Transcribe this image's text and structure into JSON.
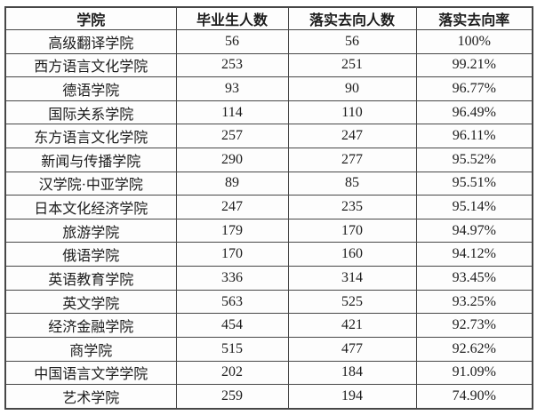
{
  "chart_data": {
    "type": "table",
    "columns": [
      "学院",
      "毕业生人数",
      "落实去向人数",
      "落实去向率"
    ],
    "rows": [
      {
        "college": "高级翻译学院",
        "graduates": 56,
        "placed": 56,
        "rate": "100%"
      },
      {
        "college": "西方语言文化学院",
        "graduates": 253,
        "placed": 251,
        "rate": "99.21%"
      },
      {
        "college": "德语学院",
        "graduates": 93,
        "placed": 90,
        "rate": "96.77%"
      },
      {
        "college": "国际关系学院",
        "graduates": 114,
        "placed": 110,
        "rate": "96.49%"
      },
      {
        "college": "东方语言文化学院",
        "graduates": 257,
        "placed": 247,
        "rate": "96.11%"
      },
      {
        "college": "新闻与传播学院",
        "graduates": 290,
        "placed": 277,
        "rate": "95.52%"
      },
      {
        "college": "汉学院·中亚学院",
        "graduates": 89,
        "placed": 85,
        "rate": "95.51%"
      },
      {
        "college": "日本文化经济学院",
        "graduates": 247,
        "placed": 235,
        "rate": "95.14%"
      },
      {
        "college": "旅游学院",
        "graduates": 179,
        "placed": 170,
        "rate": "94.97%"
      },
      {
        "college": "俄语学院",
        "graduates": 170,
        "placed": 160,
        "rate": "94.12%"
      },
      {
        "college": "英语教育学院",
        "graduates": 336,
        "placed": 314,
        "rate": "93.45%"
      },
      {
        "college": "英文学院",
        "graduates": 563,
        "placed": 525,
        "rate": "93.25%"
      },
      {
        "college": "经济金融学院",
        "graduates": 454,
        "placed": 421,
        "rate": "92.73%"
      },
      {
        "college": "商学院",
        "graduates": 515,
        "placed": 477,
        "rate": "92.62%"
      },
      {
        "college": "中国语言文学学院",
        "graduates": 202,
        "placed": 184,
        "rate": "91.09%"
      },
      {
        "college": "艺术学院",
        "graduates": 259,
        "placed": 194,
        "rate": "74.90%"
      }
    ]
  },
  "style": {
    "border_color": "#474747",
    "text_color": "#1c1c1c",
    "cell_background": "#fdfdfd"
  }
}
